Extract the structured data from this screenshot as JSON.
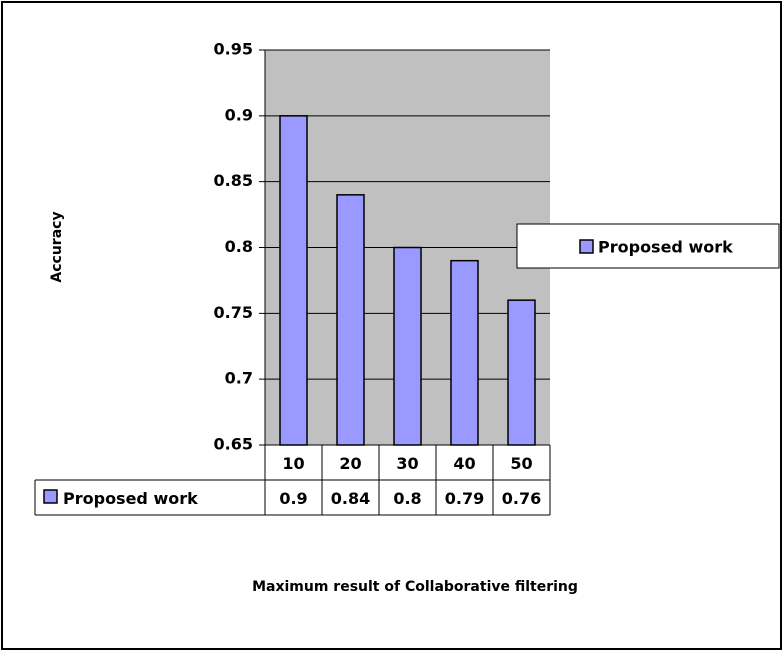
{
  "chart_data": {
    "type": "bar",
    "x_label": "Maximum result of Collaborative filtering",
    "y_label": "Accuracy",
    "categories": [
      "10",
      "20",
      "30",
      "40",
      "50"
    ],
    "series": [
      {
        "name": "Proposed work",
        "color": "#9999ff",
        "values": [
          0.9,
          0.84,
          0.8,
          0.79,
          0.76
        ]
      }
    ],
    "ylim": [
      0.65,
      0.95
    ],
    "yticks": [
      0.65,
      0.7,
      0.75,
      0.8,
      0.85,
      0.9,
      0.95
    ],
    "grid": true,
    "legend_position": "right",
    "data_table": true
  }
}
